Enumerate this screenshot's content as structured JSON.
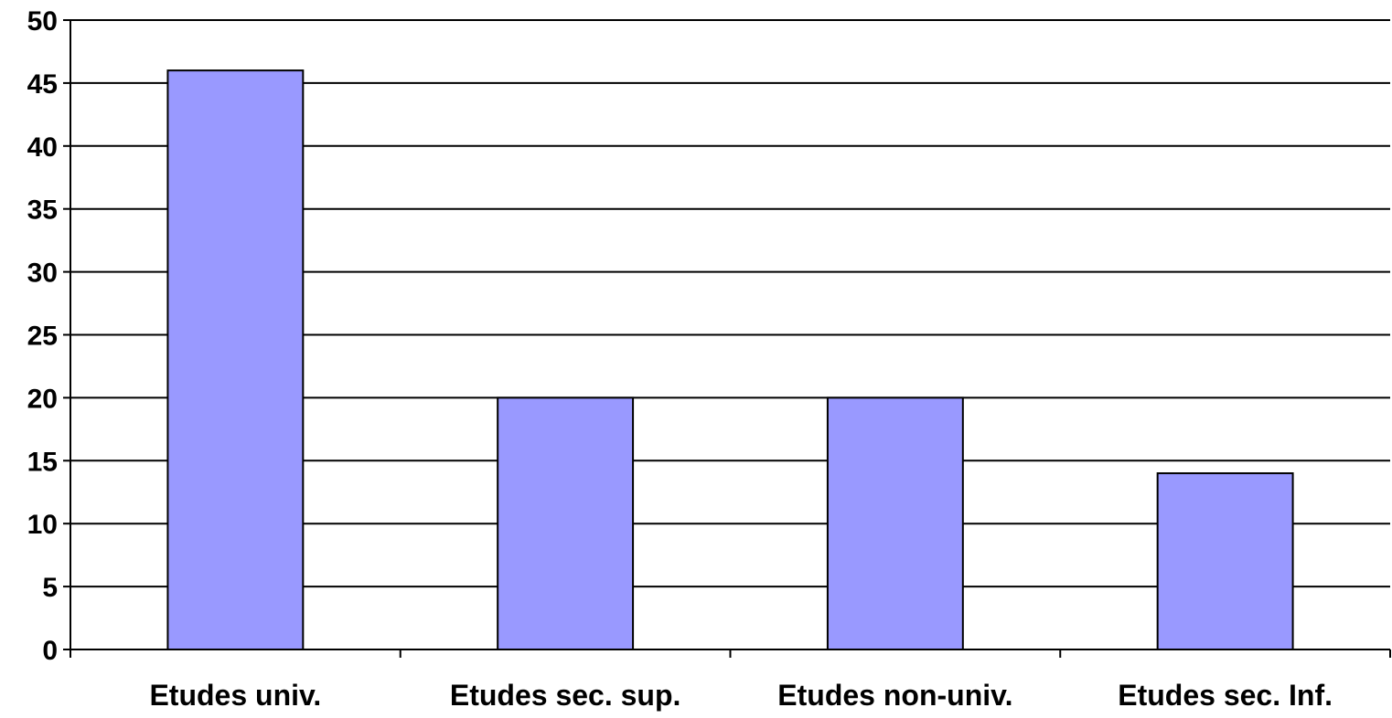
{
  "chart_data": {
    "type": "bar",
    "title": "",
    "xlabel": "",
    "ylabel": "",
    "categories": [
      "Etudes univ.",
      "Etudes sec. sup.",
      "Etudes non-univ.",
      "Etudes sec. Inf."
    ],
    "values": [
      46,
      20,
      20,
      14
    ],
    "ylim": [
      0,
      50
    ],
    "yticks": [
      "0",
      "5",
      "10",
      "15",
      "20",
      "25",
      "30",
      "35",
      "40",
      "45",
      "50"
    ],
    "grid": true,
    "legend": "none",
    "bar_color": "#9999ff",
    "bar_border_color": "#000000",
    "grid_color": "#000000"
  }
}
